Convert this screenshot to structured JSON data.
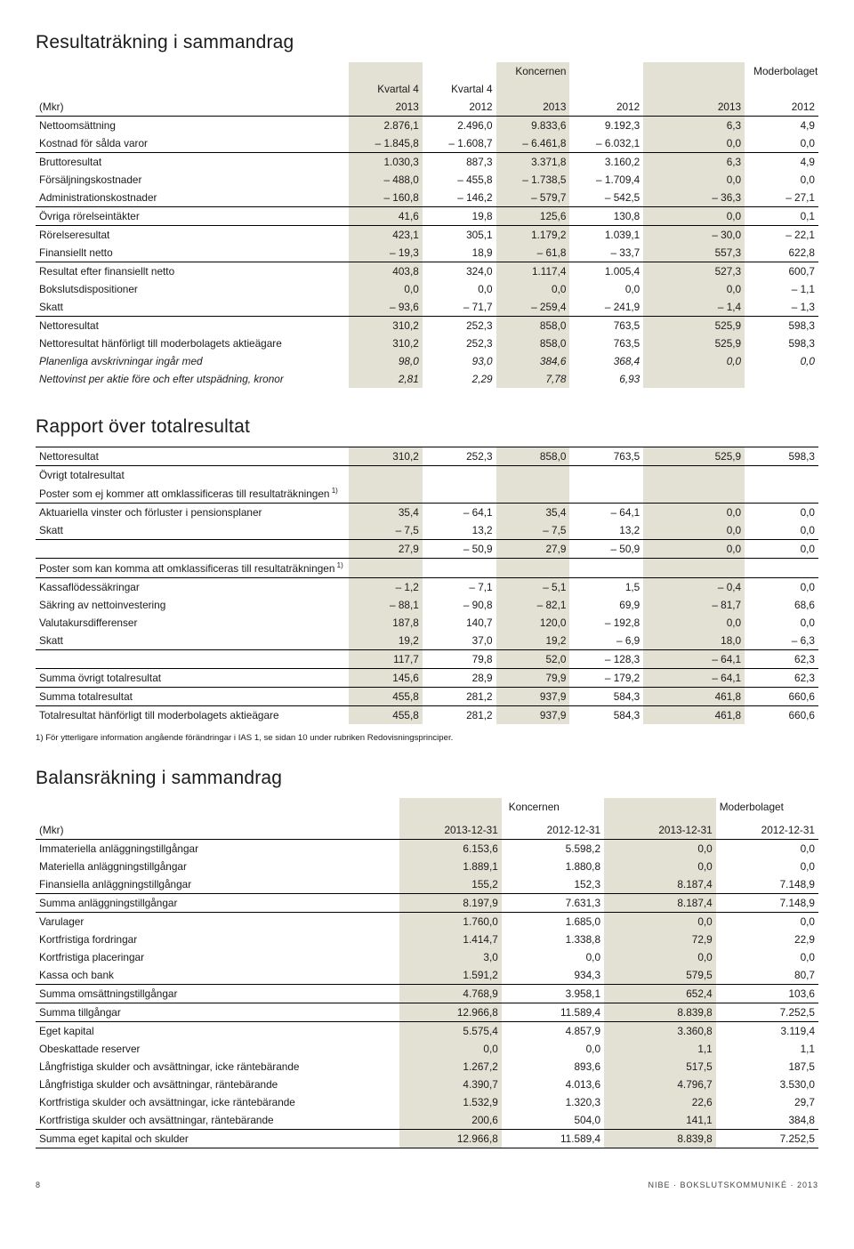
{
  "section1": {
    "title": "Resultaträkning i sammandrag",
    "group_labels": {
      "g1": "Koncernen",
      "g2": "Moderbolaget"
    },
    "col_prehdr": {
      "c1": "Kvartal 4",
      "c2": "Kvartal 4"
    },
    "unit_label": "(Mkr)",
    "cols": [
      "2013",
      "2012",
      "2013",
      "2012",
      "2013",
      "2012"
    ],
    "rows": [
      {
        "label": "Nettoomsättning",
        "v": [
          "2.876,1",
          "2.496,0",
          "9.833,6",
          "9.192,3",
          "6,3",
          "4,9"
        ]
      },
      {
        "label": "Kostnad för sålda varor",
        "v": [
          "– 1.845,8",
          "– 1.608,7",
          "– 6.461,8",
          "– 6.032,1",
          "0,0",
          "0,0"
        ],
        "style": "bot-rule"
      },
      {
        "label": "Bruttoresultat",
        "v": [
          "1.030,3",
          "887,3",
          "3.371,8",
          "3.160,2",
          "6,3",
          "4,9"
        ],
        "style": "bold"
      },
      {
        "label": "Försäljningskostnader",
        "v": [
          "– 488,0",
          "– 455,8",
          "– 1.738,5",
          "– 1.709,4",
          "0,0",
          "0,0"
        ]
      },
      {
        "label": "Administrationskostnader",
        "v": [
          "– 160,8",
          "– 146,2",
          "– 579,7",
          "– 542,5",
          "– 36,3",
          "– 27,1"
        ],
        "style": "bot-rule"
      },
      {
        "label": "Övriga rörelseintäkter",
        "v": [
          "41,6",
          "19,8",
          "125,6",
          "130,8",
          "0,0",
          "0,1"
        ],
        "style": "bot-rule"
      },
      {
        "label": "Rörelseresultat",
        "v": [
          "423,1",
          "305,1",
          "1.179,2",
          "1.039,1",
          "– 30,0",
          "– 22,1"
        ],
        "style": "bold"
      },
      {
        "label": "Finansiellt netto",
        "v": [
          "– 19,3",
          "18,9",
          "– 61,8",
          "– 33,7",
          "557,3",
          "622,8"
        ],
        "style": "bot-rule"
      },
      {
        "label": "Resultat efter finansiellt netto",
        "v": [
          "403,8",
          "324,0",
          "1.117,4",
          "1.005,4",
          "527,3",
          "600,7"
        ],
        "style": "bold"
      },
      {
        "label": "Bokslutsdispositioner",
        "v": [
          "0,0",
          "0,0",
          "0,0",
          "0,0",
          "0,0",
          "– 1,1"
        ]
      },
      {
        "label": "Skatt",
        "v": [
          "– 93,6",
          "– 71,7",
          "– 259,4",
          "– 241,9",
          "– 1,4",
          "– 1,3"
        ],
        "style": "bot-rule"
      },
      {
        "label": "Nettoresultat",
        "v": [
          "310,2",
          "252,3",
          "858,0",
          "763,5",
          "525,9",
          "598,3"
        ],
        "style": "bold pad-top"
      },
      {
        "label": "Nettoresultat hänförligt till moderbolagets aktieägare",
        "v": [
          "310,2",
          "252,3",
          "858,0",
          "763,5",
          "525,9",
          "598,3"
        ],
        "style": "bold pad-top"
      },
      {
        "label": "Planenliga avskrivningar ingår med",
        "v": [
          "98,0",
          "93,0",
          "384,6",
          "368,4",
          "0,0",
          "0,0"
        ],
        "style": "ital"
      },
      {
        "label": "Nettovinst per aktie före och efter utspädning, kronor",
        "v": [
          "2,81",
          "2,29",
          "7,78",
          "6,93",
          "",
          ""
        ],
        "style": "ital"
      }
    ]
  },
  "section2": {
    "title": "Rapport över totalresultat",
    "rows": [
      {
        "label": "Nettoresultat",
        "v": [
          "310,2",
          "252,3",
          "858,0",
          "763,5",
          "525,9",
          "598,3"
        ],
        "style": "bold thick-bot top-rule"
      },
      {
        "label": "Övrigt totalresultat",
        "v": [
          "",
          "",
          "",
          "",
          "",
          ""
        ],
        "style": "bold pad-top"
      },
      {
        "label": "Poster som ej kommer att omklassificeras till resultaträkningen",
        "sup": "1)",
        "v": [
          "",
          "",
          "",
          "",
          "",
          ""
        ],
        "style": "bold"
      },
      {
        "label": "Aktuariella vinster och förluster i pensionsplaner",
        "v": [
          "35,4",
          "– 64,1",
          "35,4",
          "– 64,1",
          "0,0",
          "0,0"
        ],
        "style": "top-rule"
      },
      {
        "label": "Skatt",
        "v": [
          "– 7,5",
          "13,2",
          "– 7,5",
          "13,2",
          "0,0",
          "0,0"
        ],
        "style": "bot-rule"
      },
      {
        "label": "",
        "v": [
          "27,9",
          "– 50,9",
          "27,9",
          "– 50,9",
          "0,0",
          "0,0"
        ],
        "style": "bold bot-rule"
      },
      {
        "label": "Poster som kan komma att omklassificeras till resultaträkningen",
        "sup": "1)",
        "v": [
          "",
          "",
          "",
          "",
          "",
          ""
        ],
        "style": "bold"
      },
      {
        "label": "Kassaflödessäkringar",
        "v": [
          "– 1,2",
          "– 7,1",
          "– 5,1",
          "1,5",
          "– 0,4",
          "0,0"
        ],
        "style": "top-rule"
      },
      {
        "label": "Säkring av nettoinvestering",
        "v": [
          "– 88,1",
          "– 90,8",
          "– 82,1",
          "69,9",
          "– 81,7",
          "68,6"
        ]
      },
      {
        "label": "Valutakursdifferenser",
        "v": [
          "187,8",
          "140,7",
          "120,0",
          "– 192,8",
          "0,0",
          "0,0"
        ]
      },
      {
        "label": "Skatt",
        "v": [
          "19,2",
          "37,0",
          "19,2",
          "– 6,9",
          "18,0",
          "– 6,3"
        ],
        "style": "bot-rule"
      },
      {
        "label": "",
        "v": [
          "117,7",
          "79,8",
          "52,0",
          "– 128,3",
          "– 64,1",
          "62,3"
        ],
        "style": "bold"
      },
      {
        "label": "Summa övrigt totalresultat",
        "v": [
          "145,6",
          "28,9",
          "79,9",
          "– 179,2",
          "– 64,1",
          "62,3"
        ],
        "style": "bold top-rule"
      },
      {
        "label": "Summa totalresultat",
        "v": [
          "455,8",
          "281,2",
          "937,9",
          "584,3",
          "461,8",
          "660,6"
        ],
        "style": "bold top-rule bot-rule"
      },
      {
        "label": "Totalresultat hänförligt till moderbolagets aktieägare",
        "v": [
          "455,8",
          "281,2",
          "937,9",
          "584,3",
          "461,8",
          "660,6"
        ],
        "style": "bold pad-top"
      }
    ],
    "footnote": "1) För ytterligare information angående förändringar i IAS 1, se sidan 10 under rubriken Redovisningsprinciper."
  },
  "section3": {
    "title": "Balansräkning i sammandrag",
    "group_labels": {
      "g1": "Koncernen",
      "g2": "Moderbolaget"
    },
    "unit_label": "(Mkr)",
    "cols": [
      "2013-12-31",
      "2012-12-31",
      "2013-12-31",
      "2012-12-31"
    ],
    "rows": [
      {
        "label": "Immateriella anläggningstillgångar",
        "v": [
          "6.153,6",
          "5.598,2",
          "0,0",
          "0,0"
        ]
      },
      {
        "label": "Materiella anläggningstillgångar",
        "v": [
          "1.889,1",
          "1.880,8",
          "0,0",
          "0,0"
        ]
      },
      {
        "label": "Finansiella anläggningstillgångar",
        "v": [
          "155,2",
          "152,3",
          "8.187,4",
          "7.148,9"
        ],
        "style": "bot-rule"
      },
      {
        "label": "Summa anläggningstillgångar",
        "v": [
          "8.197,9",
          "7.631,3",
          "8.187,4",
          "7.148,9"
        ],
        "style": "bold bot-rule"
      },
      {
        "label": "Varulager",
        "v": [
          "1.760,0",
          "1.685,0",
          "0,0",
          "0,0"
        ]
      },
      {
        "label": "Kortfristiga fordringar",
        "v": [
          "1.414,7",
          "1.338,8",
          "72,9",
          "22,9"
        ]
      },
      {
        "label": "Kortfristiga placeringar",
        "v": [
          "3,0",
          "0,0",
          "0,0",
          "0,0"
        ]
      },
      {
        "label": "Kassa och bank",
        "v": [
          "1.591,2",
          "934,3",
          "579,5",
          "80,7"
        ],
        "style": "bot-rule"
      },
      {
        "label": "Summa omsättningstillgångar",
        "v": [
          "4.768,9",
          "3.958,1",
          "652,4",
          "103,6"
        ],
        "style": "bold bot-rule"
      },
      {
        "label": "Summa tillgångar",
        "v": [
          "12.966,8",
          "11.589,4",
          "8.839,8",
          "7.252,5"
        ],
        "style": "bold thick-bot"
      },
      {
        "label": "Eget kapital",
        "v": [
          "5.575,4",
          "4.857,9",
          "3.360,8",
          "3.119,4"
        ]
      },
      {
        "label": "Obeskattade reserver",
        "v": [
          "0,0",
          "0,0",
          "1,1",
          "1,1"
        ]
      },
      {
        "label": "Långfristiga skulder och avsättningar, icke räntebärande",
        "v": [
          "1.267,2",
          "893,6",
          "517,5",
          "187,5"
        ]
      },
      {
        "label": "Långfristiga skulder och avsättningar, räntebärande",
        "v": [
          "4.390,7",
          "4.013,6",
          "4.796,7",
          "3.530,0"
        ]
      },
      {
        "label": "Kortfristiga skulder och avsättningar, icke räntebärande",
        "v": [
          "1.532,9",
          "1.320,3",
          "22,6",
          "29,7"
        ]
      },
      {
        "label": "Kortfristiga skulder och avsättningar, räntebärande",
        "v": [
          "200,6",
          "504,0",
          "141,1",
          "384,8"
        ],
        "style": "bot-rule"
      },
      {
        "label": "Summa eget kapital och skulder",
        "v": [
          "12.966,8",
          "11.589,4",
          "8.839,8",
          "7.252,5"
        ],
        "style": "bold thick-bot"
      }
    ]
  },
  "footer": {
    "page": "8",
    "text": "NIBE  ·  BOKSLUTSKOMMUNIKÉ  ·  2013"
  }
}
